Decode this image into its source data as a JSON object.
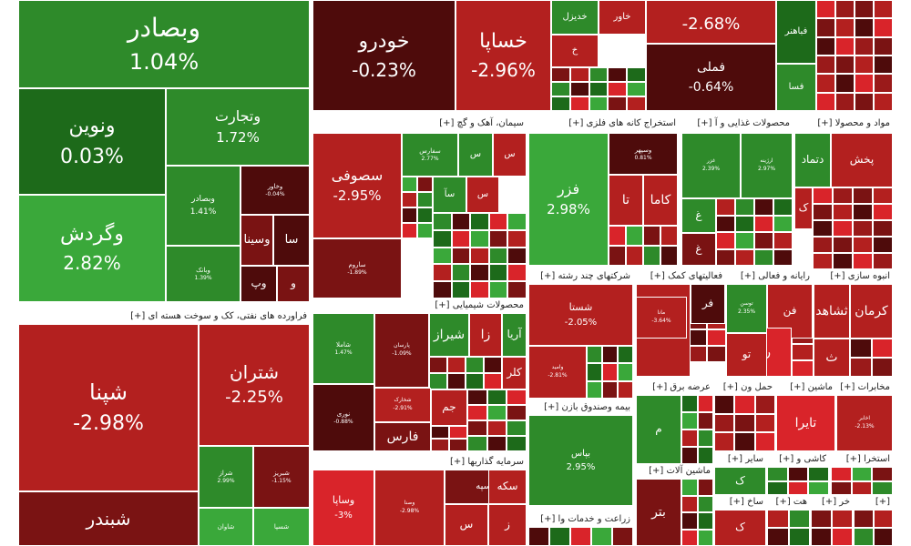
{
  "chart_data": {
    "type": "treemap",
    "colors": {
      "deep_red": "#4e0b0b",
      "dark_red": "#7a1313",
      "red": "#b3201f",
      "bright_red": "#d9242a",
      "dark_green": "#1d6a1a",
      "green": "#2e8a2a",
      "bright_green": "#3aa83a",
      "header_bg": "#ffffff"
    },
    "groups": [
      {
        "title": "فراورده های نفتی، کک و سوخت هسته ای [+]"
      },
      {
        "title": "سیمان، آهک و گچ [+]"
      },
      {
        "title": "استخراج کانه های فلزی [+]"
      },
      {
        "title": "محصولات غذایی و آ [+]"
      },
      {
        "title": "مواد و محصولا [+]"
      },
      {
        "title": "محصولات شیمیایی [+]"
      },
      {
        "title": "شرکتهای چند رشته [+]"
      },
      {
        "title": "فعالیتهای کمک [+]"
      },
      {
        "title": "رایانه و فعالی [+]"
      },
      {
        "title": "انبوه سازی [+]"
      },
      {
        "title": "بیمه وصندوق بازن [+]"
      },
      {
        "title": "عرضه برق [+]"
      },
      {
        "title": "حمل ون [+]"
      },
      {
        "title": "ماشین [+]"
      },
      {
        "title": "مخابرات [+]"
      },
      {
        "title": "سرمایه گذاریها [+]"
      },
      {
        "title": "زراعت و خدمات وا [+]"
      },
      {
        "title": "ماشین آلات [+]"
      },
      {
        "title": "سایر [+]"
      },
      {
        "title": "کاشی و [+]"
      },
      {
        "title": "استخرا [+]"
      },
      {
        "title": "ساخ [+]"
      },
      {
        "title": "هت [+]"
      },
      {
        "title": "خر [+]"
      },
      {
        "title": "[+]"
      }
    ],
    "tiles": [
      {
        "name": "وبصادر",
        "pct": "1.04%",
        "value": 1.04,
        "color": "#2e8a2a"
      },
      {
        "name": "ونوین",
        "pct": "0.03%",
        "value": 0.03,
        "color": "#1d6a1a"
      },
      {
        "name": "وتجارت",
        "pct": "1.72%",
        "value": 1.72,
        "color": "#2e8a2a"
      },
      {
        "name": "وگردش",
        "pct": "2.82%",
        "value": 2.82,
        "color": "#3aa83a"
      },
      {
        "name": "وبصادر",
        "pct": "1.41%",
        "value": 1.41,
        "color": "#2e8a2a"
      },
      {
        "name": "وبانک",
        "pct": "1.39%",
        "value": 1.39,
        "color": "#2e8a2a"
      },
      {
        "name": "وخاور",
        "pct": "-0.04%",
        "value": -0.04,
        "color": "#4e0b0b"
      },
      {
        "name": "وسینا",
        "pct": "",
        "value": null,
        "color": "#7a1313"
      },
      {
        "name": "سا",
        "pct": "",
        "value": null,
        "color": "#4e0b0b"
      },
      {
        "name": "وپ",
        "pct": "",
        "value": null,
        "color": "#4e0b0b"
      },
      {
        "name": "و",
        "pct": "",
        "value": null,
        "color": "#7a1313"
      },
      {
        "name": "خودرو",
        "pct": "-0.23%",
        "value": -0.23,
        "color": "#4e0b0b"
      },
      {
        "name": "خساپا",
        "pct": "-2.96%",
        "value": -2.96,
        "color": "#b3201f"
      },
      {
        "name": "خدیزل",
        "pct": "",
        "value": null,
        "color": "#2e8a2a"
      },
      {
        "name": "خاور",
        "pct": "",
        "value": null,
        "color": "#b3201f"
      },
      {
        "name": "خ",
        "pct": "",
        "value": null,
        "color": "#b3201f"
      },
      {
        "name": "",
        "pct": "-2.68%",
        "value": -2.68,
        "color": "#b3201f"
      },
      {
        "name": "فملی",
        "pct": "-0.64%",
        "value": -0.64,
        "color": "#4e0b0b"
      },
      {
        "name": "فباهنر",
        "pct": "",
        "value": null,
        "color": "#1d6a1a"
      },
      {
        "name": "فسا",
        "pct": "",
        "value": null,
        "color": "#2e8a2a"
      },
      {
        "name": "سصوفی",
        "pct": "-2.95%",
        "value": -2.95,
        "color": "#b3201f"
      },
      {
        "name": "ساروم",
        "pct": "-1.89%",
        "value": -1.89,
        "color": "#7a1313"
      },
      {
        "name": "سفارس",
        "pct": "2.77%",
        "value": 2.77,
        "color": "#2e8a2a"
      },
      {
        "name": "س",
        "pct": "",
        "value": null,
        "color": "#2e8a2a"
      },
      {
        "name": "س",
        "pct": "",
        "value": null,
        "color": "#b3201f"
      },
      {
        "name": "سآ",
        "pct": "",
        "value": null,
        "color": "#2e8a2a"
      },
      {
        "name": "س",
        "pct": "",
        "value": null,
        "color": "#b3201f"
      },
      {
        "name": "فزر",
        "pct": "2.98%",
        "value": 2.98,
        "color": "#3aa83a"
      },
      {
        "name": "وسپهر",
        "pct": "0.81%",
        "value": 0.81,
        "color": "#4e0b0b"
      },
      {
        "name": "تا",
        "pct": "",
        "value": null,
        "color": "#b3201f"
      },
      {
        "name": "کاما",
        "pct": "",
        "value": null,
        "color": "#b3201f"
      },
      {
        "name": "غزر",
        "pct": "2.39%",
        "value": 2.39,
        "color": "#2e8a2a"
      },
      {
        "name": "ارژینه",
        "pct": "2.97%",
        "value": 2.97,
        "color": "#2e8a2a"
      },
      {
        "name": "غ",
        "pct": "",
        "value": null,
        "color": "#2e8a2a"
      },
      {
        "name": "غ",
        "pct": "",
        "value": null,
        "color": "#7a1313"
      },
      {
        "name": "دتماد",
        "pct": "",
        "value": null,
        "color": "#2e8a2a"
      },
      {
        "name": "پخش",
        "pct": "",
        "value": null,
        "color": "#b3201f"
      },
      {
        "name": "ک",
        "pct": "",
        "value": null,
        "color": "#b3201f"
      },
      {
        "name": "شپنا",
        "pct": "-2.98%",
        "value": -2.98,
        "color": "#b3201f"
      },
      {
        "name": "شتران",
        "pct": "-2.25%",
        "value": -2.25,
        "color": "#b3201f"
      },
      {
        "name": "شبندر",
        "pct": "",
        "value": null,
        "color": "#7a1313"
      },
      {
        "name": "شراز",
        "pct": "2.99%",
        "value": 2.99,
        "color": "#2e8a2a"
      },
      {
        "name": "شبریز",
        "pct": "-1.15%",
        "value": -1.15,
        "color": "#7a1313"
      },
      {
        "name": "شاوان",
        "pct": "",
        "value": null,
        "color": "#3aa83a"
      },
      {
        "name": "شسپا",
        "pct": "",
        "value": null,
        "color": "#3aa83a"
      },
      {
        "name": "شاملا",
        "pct": "1.47%",
        "value": 1.47,
        "color": "#2e8a2a"
      },
      {
        "name": "پارسان",
        "pct": "-1.09%",
        "value": -1.09,
        "color": "#7a1313"
      },
      {
        "name": "شیراز",
        "pct": "",
        "value": null,
        "color": "#2e8a2a"
      },
      {
        "name": "زا",
        "pct": "",
        "value": null,
        "color": "#b3201f"
      },
      {
        "name": "آریا",
        "pct": "",
        "value": null,
        "color": "#2e8a2a"
      },
      {
        "name": "کلر",
        "pct": "",
        "value": null,
        "color": "#b3201f"
      },
      {
        "name": "شخارک",
        "pct": "-2.91%",
        "value": -2.91,
        "color": "#b3201f"
      },
      {
        "name": "نوری",
        "pct": "-0.88%",
        "value": -0.88,
        "color": "#4e0b0b"
      },
      {
        "name": "جم",
        "pct": "",
        "value": null,
        "color": "#b3201f"
      },
      {
        "name": "فارس",
        "pct": "",
        "value": null,
        "color": "#7a1313"
      },
      {
        "name": "شستا",
        "pct": "-2.05%",
        "value": -2.05,
        "color": "#b3201f"
      },
      {
        "name": "وامید",
        "pct": "-2.81%",
        "value": -2.81,
        "color": "#b3201f"
      },
      {
        "name": "بورس",
        "pct": "",
        "value": null,
        "color": "#b3201f"
      },
      {
        "name": "فر",
        "pct": "",
        "value": null,
        "color": "#4e0b0b"
      },
      {
        "name": "مانا",
        "pct": "-3.64%",
        "value": -3.64,
        "color": "#b3201f"
      },
      {
        "name": "فن",
        "pct": "",
        "value": null,
        "color": "#b3201f"
      },
      {
        "name": "رپویا",
        "pct": "",
        "value": null,
        "color": "#d9242a"
      },
      {
        "name": "توسن",
        "pct": "2.35%",
        "value": 2.35,
        "color": "#2e8a2a"
      },
      {
        "name": "تو",
        "pct": "",
        "value": null,
        "color": "#b3201f"
      },
      {
        "name": "ثشاهد",
        "pct": "",
        "value": null,
        "color": "#b3201f"
      },
      {
        "name": "کرمان",
        "pct": "",
        "value": null,
        "color": "#b3201f"
      },
      {
        "name": "ث",
        "pct": "",
        "value": null,
        "color": "#b3201f"
      },
      {
        "name": "بپاس",
        "pct": "2.95%",
        "value": 2.95,
        "color": "#2e8a2a"
      },
      {
        "name": "م",
        "pct": "",
        "value": null,
        "color": "#2e8a2a"
      },
      {
        "name": "تایرا",
        "pct": "",
        "value": null,
        "color": "#d9242a"
      },
      {
        "name": "اخابر",
        "pct": "-2.13%",
        "value": -2.13,
        "color": "#b3201f"
      },
      {
        "name": "وسپه",
        "pct": "",
        "value": null,
        "color": "#7a1313"
      },
      {
        "name": "وصنا",
        "pct": "-2.98%",
        "value": -2.98,
        "color": "#b3201f"
      },
      {
        "name": "وساپا",
        "pct": "-3%",
        "value": -3.0,
        "color": "#d9242a"
      },
      {
        "name": "سکه",
        "pct": "",
        "value": null,
        "color": "#b3201f"
      },
      {
        "name": "س",
        "pct": "",
        "value": null,
        "color": "#b3201f"
      },
      {
        "name": "ز",
        "pct": "",
        "value": null,
        "color": "#b3201f"
      },
      {
        "name": "بتر",
        "pct": "",
        "value": null,
        "color": "#7a1313"
      },
      {
        "name": "ک",
        "pct": "",
        "value": null,
        "color": "#2e8a2a"
      },
      {
        "name": "ک",
        "pct": "",
        "value": null,
        "color": "#b3201f"
      }
    ]
  }
}
